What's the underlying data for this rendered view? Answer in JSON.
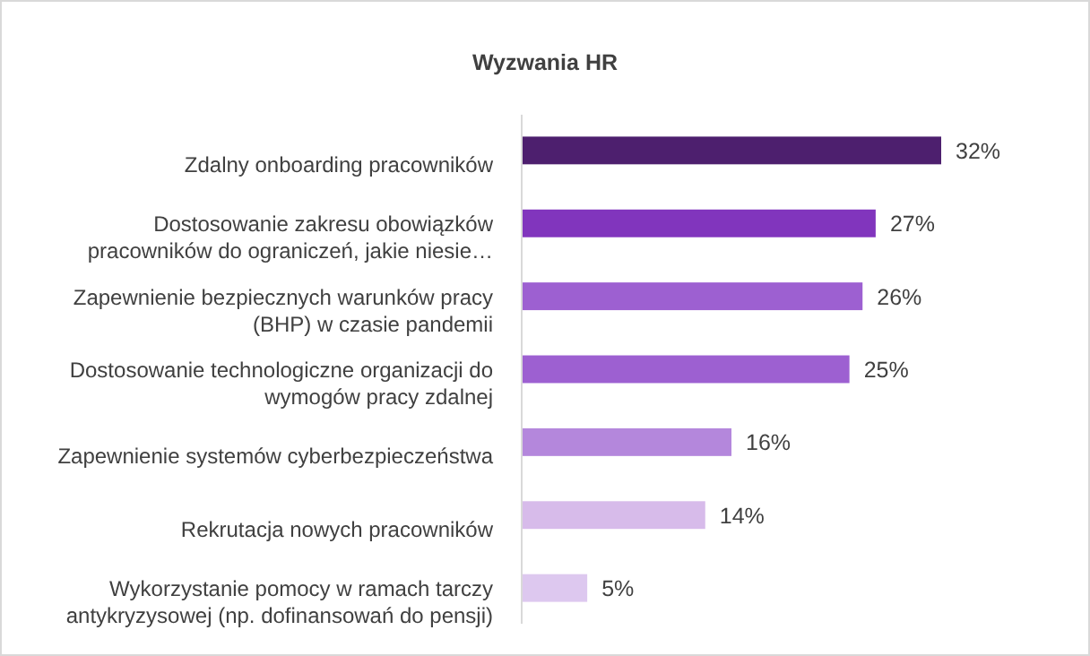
{
  "chart_data": {
    "type": "bar",
    "orientation": "horizontal",
    "title": "Wyzwania HR",
    "categories": [
      "Zdalny onboarding pracowników",
      "Dostosowanie zakresu obowiązków\npracowników do ograniczeń, jakie niesie…",
      "Zapewnienie bezpiecznych warunków pracy\n(BHP) w czasie pandemii",
      "Dostosowanie technologiczne organizacji do\nwymogów pracy zdalnej",
      "Zapewnienie systemów cyberbezpieczeństwa",
      "Rekrutacja nowych pracowników",
      "Wykorzystanie pomocy w ramach tarczy\nantykryzysowej (np. dofinansowań do pensji)"
    ],
    "values": [
      32,
      27,
      26,
      25,
      16,
      14,
      5
    ],
    "colors": [
      "#4d1f6e",
      "#8135bd",
      "#9d60d1",
      "#9d60d1",
      "#b487dc",
      "#d7bbea",
      "#ddc8ef"
    ],
    "value_labels": [
      "32%",
      "27%",
      "26%",
      "25%",
      "16%",
      "14%",
      "5%"
    ]
  }
}
